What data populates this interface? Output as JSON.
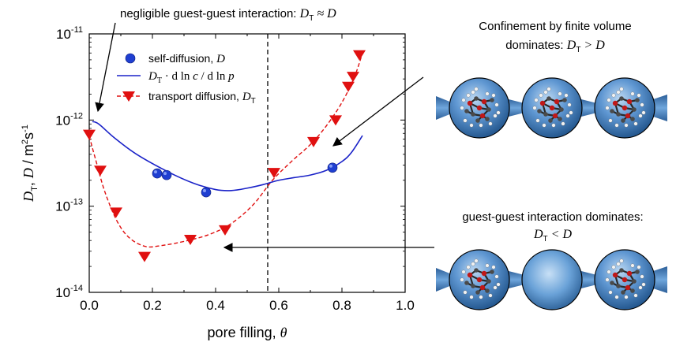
{
  "chart_data": {
    "type": "scatter",
    "xlabel": "pore filling, θ",
    "ylabel": "D_T, D / m²s⁻¹",
    "xlim": [
      0.0,
      1.0
    ],
    "ylim": [
      1e-14,
      1e-11
    ],
    "yscale": "log",
    "xticks": [
      "0.0",
      "0.2",
      "0.4",
      "0.6",
      "0.8",
      "1.0"
    ],
    "yticks": [
      {
        "mantissa": "10",
        "exp": "-11"
      },
      {
        "mantissa": "10",
        "exp": "-12"
      },
      {
        "mantissa": "10",
        "exp": "-13"
      },
      {
        "mantissa": "10",
        "exp": "-14"
      }
    ],
    "legend_position": "top-left",
    "vline_x": 0.565,
    "series": [
      {
        "name": "self-diffusion, D",
        "marker": "circle",
        "color": "#1f3fd1",
        "x": [
          0.215,
          0.245,
          0.37,
          0.77
        ],
        "y": [
          2.4e-13,
          2.3e-13,
          1.45e-13,
          2.8e-13
        ]
      },
      {
        "name": "D_T · d ln c / d ln p",
        "style": "solid-line",
        "color": "#1a22c8",
        "x": [
          0.01,
          0.03,
          0.08,
          0.15,
          0.25,
          0.33,
          0.4,
          0.45,
          0.5,
          0.55,
          0.6,
          0.65,
          0.7,
          0.75,
          0.8,
          0.83,
          0.865
        ],
        "y": [
          9.6e-13,
          9e-13,
          6.2e-13,
          4e-13,
          2.5e-13,
          1.85e-13,
          1.56e-13,
          1.52e-13,
          1.62e-13,
          1.78e-13,
          2e-13,
          2.15e-13,
          2.3e-13,
          2.6e-13,
          3.3e-13,
          4.2e-13,
          6.6e-13
        ]
      },
      {
        "name": "transport diffusion, D_T",
        "marker": "triangle-down",
        "style": "dashed-line",
        "color": "#e01010",
        "x": [
          0.0,
          0.035,
          0.085,
          0.175,
          0.32,
          0.43,
          0.585,
          0.71,
          0.78,
          0.82,
          0.835,
          0.855
        ],
        "y": [
          6.8e-13,
          2.6e-13,
          8.5e-14,
          2.6e-14,
          4.1e-14,
          5.3e-14,
          2.45e-13,
          5.6e-13,
          1e-12,
          2.45e-12,
          3.2e-12,
          5.7e-12
        ]
      }
    ],
    "fit_transport": {
      "x": [
        0.0,
        0.02,
        0.05,
        0.09,
        0.13,
        0.18,
        0.23,
        0.3,
        0.38,
        0.45,
        0.52,
        0.58,
        0.64,
        0.7,
        0.75,
        0.8,
        0.84,
        0.865
      ],
      "y": [
        6.5e-13,
        3.5e-13,
        1.45e-13,
        6.5e-14,
        4.2e-14,
        3.4e-14,
        3.5e-14,
        3.9e-14,
        4.7e-14,
        6.3e-14,
        1.05e-13,
        2e-13,
        3.3e-13,
        5.2e-13,
        8.5e-13,
        1.6e-12,
        3.2e-12,
        6e-12
      ]
    }
  },
  "annotations": {
    "top_note": {
      "text": "negligible guest-guest interaction: ",
      "math": "D",
      "sub": "T",
      "tail": " ≈ D"
    },
    "confinement": {
      "line1": "Confinement by finite volume",
      "line2": "dominates: ",
      "math": "D",
      "sub": "T",
      "tail": " > D"
    },
    "guest": {
      "line1": "guest-guest interaction dominates:",
      "math": "D",
      "sub": "T",
      "tail": " < D"
    }
  },
  "colors": {
    "sphere": "#3d7cc0",
    "sphere_dark": "#1c4f86",
    "molecule_red": "#c01818",
    "molecule_grey": "#4a4a4a"
  }
}
